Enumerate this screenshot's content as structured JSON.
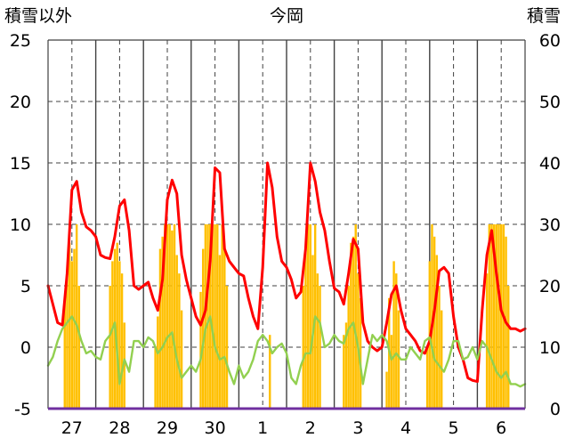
{
  "chart_data": {
    "type": "bar+line",
    "title": "今岡",
    "left_axis_label": "積雪以外",
    "right_axis_label": "積雪",
    "left_ticks": [
      "25",
      "20",
      "15",
      "10",
      "5",
      "0",
      "-5"
    ],
    "right_ticks": [
      "60",
      "50",
      "40",
      "30",
      "20",
      "10",
      "0"
    ],
    "x_ticks": [
      "27",
      "28",
      "29",
      "30",
      "1",
      "2",
      "3",
      "4",
      "5",
      "6"
    ],
    "ylim_left": [
      -5,
      25
    ],
    "ylim_right": [
      0,
      60
    ],
    "grid": true,
    "colors": {
      "snow_bar": "#FFC000",
      "red_series": "#FF0000",
      "green_series": "#92D050",
      "grid": "#404040",
      "baseline": "#7030A0"
    },
    "series": [
      {
        "type": "line",
        "axis": "left",
        "color": "#FF0000",
        "x": [
          0.0,
          0.1,
          0.2,
          0.3,
          0.4,
          0.5,
          0.6,
          0.7,
          0.8,
          0.9,
          1.0,
          1.1,
          1.2,
          1.3,
          1.4,
          1.5,
          1.6,
          1.7,
          1.8,
          1.9,
          2.0,
          2.1,
          2.2,
          2.3,
          2.4,
          2.5,
          2.6,
          2.7,
          2.8,
          2.9,
          3.0,
          3.1,
          3.2,
          3.3,
          3.4,
          3.5,
          3.6,
          3.7,
          3.8,
          3.9,
          4.0,
          4.1,
          4.2,
          4.3,
          4.4,
          4.5,
          4.6,
          4.7,
          4.8,
          4.9,
          5.0,
          5.1,
          5.2,
          5.3,
          5.4,
          5.5,
          5.6,
          5.7,
          5.8,
          5.9,
          6.0,
          6.1,
          6.2,
          6.3,
          6.4,
          6.5,
          6.6,
          6.7,
          6.8,
          6.9,
          7.0,
          7.1,
          7.2,
          7.3,
          7.4,
          7.5,
          7.6,
          7.7,
          7.8,
          7.9,
          8.0,
          8.1,
          8.2,
          8.3,
          8.4,
          8.5,
          8.6,
          8.7,
          8.8,
          8.9,
          9.0,
          9.1,
          9.2,
          9.3,
          9.4,
          9.5,
          9.6,
          9.7,
          9.8,
          9.9,
          10.0
        ],
        "y": [
          5.0,
          3.5,
          2.0,
          1.8,
          6.0,
          12.8,
          13.5,
          11.0,
          9.8,
          9.5,
          9.0,
          7.5,
          7.3,
          7.2,
          9.0,
          11.5,
          12.0,
          9.5,
          5.0,
          4.7,
          5.0,
          5.3,
          4.0,
          3.0,
          5.5,
          12.0,
          13.6,
          12.5,
          7.5,
          5.5,
          4.0,
          2.5,
          1.8,
          3.0,
          7.0,
          14.6,
          14.2,
          8.0,
          7.0,
          6.5,
          6.0,
          5.8,
          4.0,
          2.5,
          1.5,
          6.5,
          15.0,
          13.0,
          9.0,
          7.0,
          6.5,
          5.5,
          4.0,
          4.5,
          8.0,
          15.0,
          13.5,
          11.0,
          9.5,
          7.0,
          4.8,
          4.5,
          3.5,
          6.0,
          8.8,
          8.0,
          2.0,
          0.5,
          0.0,
          -0.3,
          0.0,
          2.0,
          4.3,
          5.0,
          3.0,
          1.5,
          1.0,
          0.5,
          -0.3,
          -0.5,
          0.5,
          3.0,
          6.2,
          6.5,
          6.0,
          2.5,
          0.0,
          -1.0,
          -2.5,
          -2.7,
          -2.8,
          3.0,
          7.5,
          9.5,
          6.0,
          3.0,
          2.0,
          1.5,
          1.5,
          1.3,
          1.5
        ]
      },
      {
        "type": "line",
        "axis": "left",
        "color": "#92D050",
        "x": [
          0.0,
          0.1,
          0.2,
          0.3,
          0.4,
          0.5,
          0.6,
          0.7,
          0.8,
          0.9,
          1.0,
          1.1,
          1.2,
          1.3,
          1.4,
          1.5,
          1.6,
          1.7,
          1.8,
          1.9,
          2.0,
          2.1,
          2.2,
          2.3,
          2.4,
          2.5,
          2.6,
          2.7,
          2.8,
          2.9,
          3.0,
          3.1,
          3.2,
          3.3,
          3.4,
          3.5,
          3.6,
          3.7,
          3.8,
          3.9,
          4.0,
          4.1,
          4.2,
          4.3,
          4.4,
          4.5,
          4.6,
          4.7,
          4.8,
          4.9,
          5.0,
          5.1,
          5.2,
          5.3,
          5.4,
          5.5,
          5.6,
          5.7,
          5.8,
          5.9,
          6.0,
          6.1,
          6.2,
          6.3,
          6.4,
          6.5,
          6.6,
          6.7,
          6.8,
          6.9,
          7.0,
          7.1,
          7.2,
          7.3,
          7.4,
          7.5,
          7.6,
          7.7,
          7.8,
          7.9,
          8.0,
          8.1,
          8.2,
          8.3,
          8.4,
          8.5,
          8.6,
          8.7,
          8.8,
          8.9,
          9.0,
          9.1,
          9.2,
          9.3,
          9.4,
          9.5,
          9.6,
          9.7,
          9.8,
          9.9,
          10.0
        ],
        "y": [
          -1.5,
          -0.8,
          0.5,
          1.5,
          2.0,
          2.5,
          1.8,
          0.5,
          -0.5,
          -0.3,
          -0.8,
          -1.0,
          0.5,
          1.0,
          2.0,
          -3.0,
          -1.0,
          -2.0,
          0.5,
          0.5,
          0.0,
          0.8,
          0.5,
          -0.5,
          0.0,
          0.8,
          1.2,
          -1.0,
          -2.5,
          -2.0,
          -1.5,
          -2.0,
          -1.0,
          1.5,
          2.5,
          0.0,
          -1.0,
          -0.8,
          -2.0,
          -3.0,
          -1.5,
          -2.5,
          -2.0,
          -1.0,
          0.5,
          1.0,
          0.5,
          -0.5,
          0.0,
          0.3,
          -0.5,
          -2.5,
          -3.0,
          -1.5,
          -0.5,
          -0.5,
          2.5,
          2.0,
          0.0,
          0.3,
          1.0,
          0.5,
          0.3,
          1.5,
          2.0,
          0.0,
          -3.0,
          -1.0,
          1.0,
          0.5,
          1.0,
          0.5,
          -1.0,
          -0.5,
          -1.0,
          -1.0,
          0.0,
          -0.5,
          -1.0,
          0.5,
          0.8,
          -1.0,
          -1.5,
          -2.0,
          -1.0,
          0.5,
          0.5,
          -1.0,
          -0.8,
          0.0,
          -1.0,
          0.5,
          0.0,
          -1.0,
          -2.0,
          -2.5,
          -2.0,
          -3.0,
          -3.0,
          -3.2,
          -3.0
        ]
      },
      {
        "type": "bar",
        "axis": "right",
        "color": "#FFC000",
        "x": [
          0.35,
          0.4,
          0.45,
          0.5,
          0.55,
          0.6,
          0.65,
          1.3,
          1.35,
          1.4,
          1.45,
          1.5,
          1.55,
          1.6,
          2.25,
          2.3,
          2.35,
          2.4,
          2.45,
          2.5,
          2.55,
          2.6,
          2.65,
          2.7,
          2.75,
          2.8,
          3.2,
          3.25,
          3.3,
          3.35,
          3.4,
          3.45,
          3.5,
          3.55,
          3.6,
          3.65,
          3.7,
          3.75,
          4.65,
          5.35,
          5.4,
          5.45,
          5.5,
          5.55,
          5.6,
          5.65,
          5.7,
          6.2,
          6.25,
          6.3,
          6.35,
          6.4,
          6.45,
          6.5,
          6.55,
          7.1,
          7.15,
          7.2,
          7.25,
          7.3,
          7.35,
          7.95,
          8.0,
          8.05,
          8.1,
          8.15,
          8.2,
          8.25,
          9.2,
          9.25,
          9.3,
          9.35,
          9.4,
          9.45,
          9.5,
          9.55,
          9.6,
          9.65
        ],
        "values": [
          18,
          22,
          27,
          24,
          26,
          30,
          20,
          20,
          24,
          26,
          27,
          24,
          22,
          14,
          10,
          15,
          26,
          28,
          30,
          30,
          30,
          29,
          30,
          25,
          22,
          16,
          19,
          26,
          30,
          30,
          30,
          30,
          30,
          30,
          25,
          30,
          26,
          20,
          12,
          20,
          26,
          30,
          30,
          25,
          30,
          22,
          20,
          12,
          14,
          20,
          27,
          28,
          30,
          22,
          18,
          6,
          18,
          12,
          24,
          22,
          16,
          10,
          24,
          30,
          28,
          25,
          20,
          16,
          22,
          30,
          30,
          30,
          30,
          30,
          30,
          30,
          28,
          20
        ]
      }
    ]
  }
}
